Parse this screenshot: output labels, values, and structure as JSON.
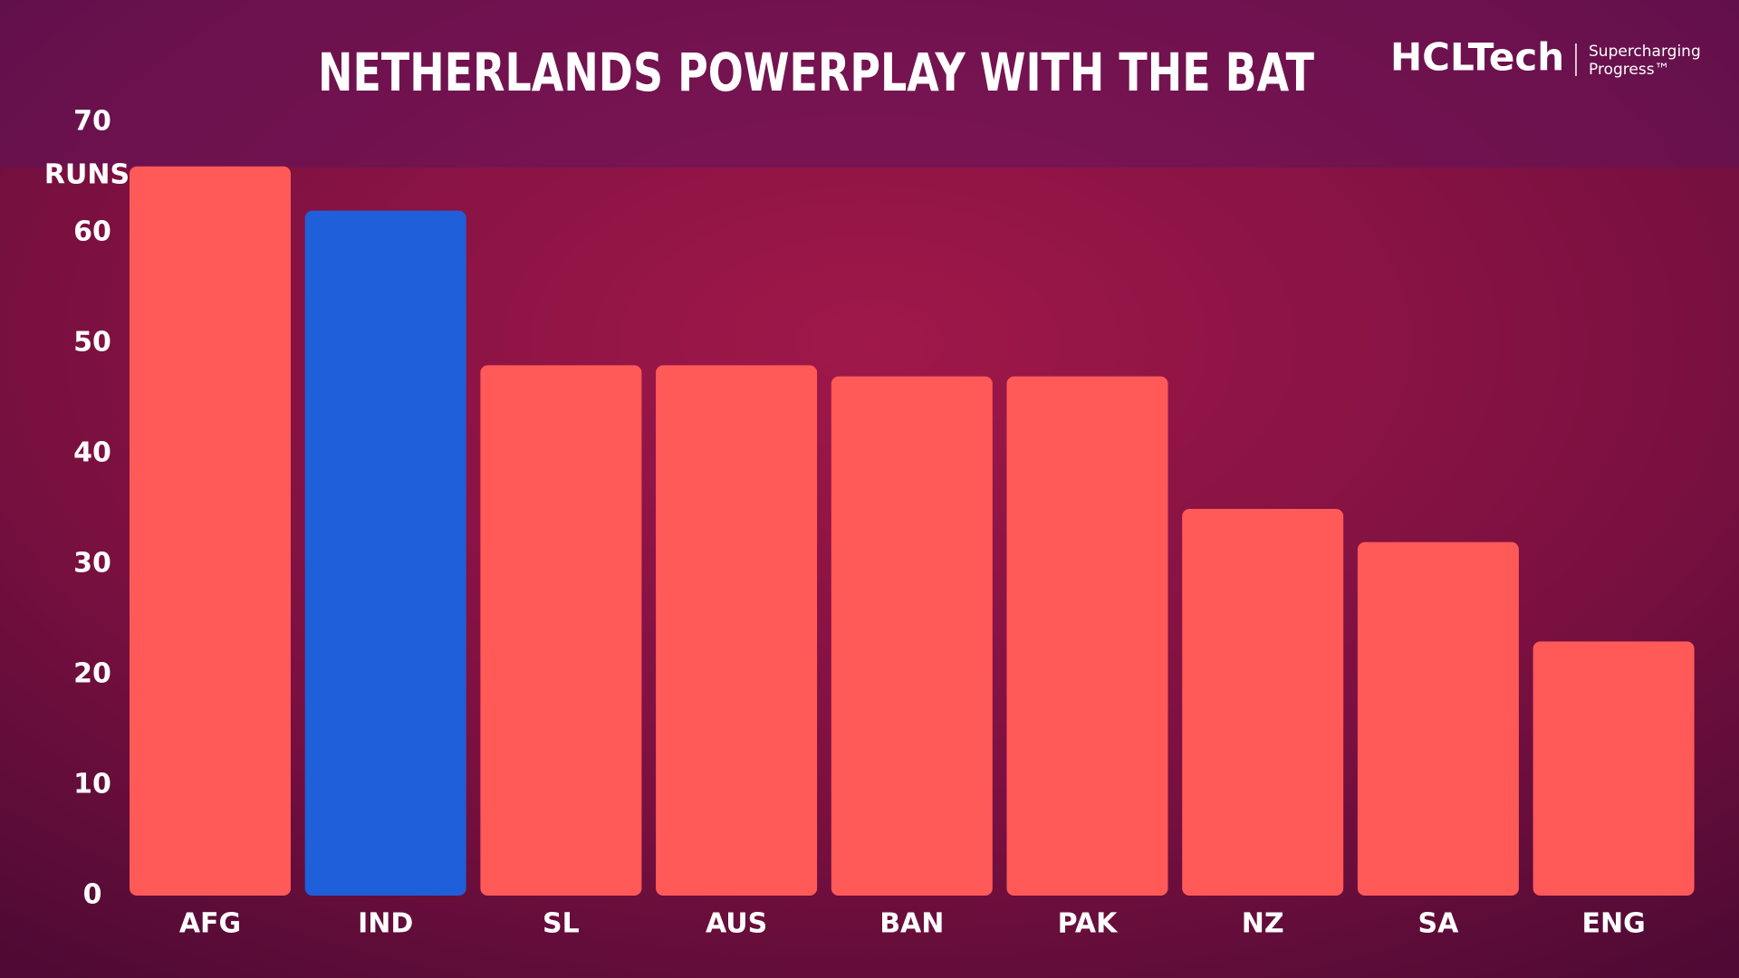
{
  "chart_data": {
    "type": "bar",
    "title": "NETHERLANDS POWERPLAY WITH THE BAT",
    "y_label": "RUNS",
    "categories": [
      "AFG",
      "IND",
      "SL",
      "AUS",
      "BAN",
      "PAK",
      "NZ",
      "SA",
      "ENG"
    ],
    "values": [
      66,
      62,
      48,
      48,
      47,
      47,
      35,
      32,
      23
    ],
    "colors": [
      "#ff5a58",
      "#1f5fd9",
      "#ff5a58",
      "#ff5a58",
      "#ff5a58",
      "#ff5a58",
      "#ff5a58",
      "#ff5a58",
      "#ff5a58"
    ],
    "ylim": [
      0,
      70
    ],
    "yticks": [
      0,
      10,
      20,
      30,
      40,
      50,
      60,
      70
    ],
    "grid": false
  },
  "brand": {
    "name": "HCLTech",
    "tagline": [
      "Supercharging",
      "Progress™"
    ]
  }
}
